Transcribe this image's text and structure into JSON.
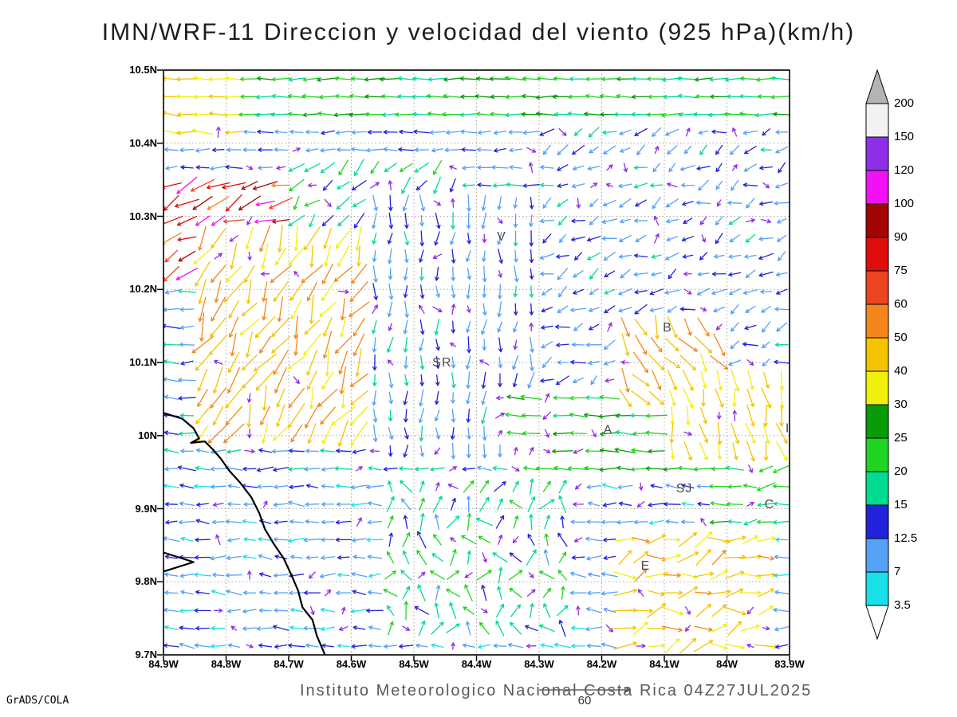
{
  "title": "IMN/WRF-11 Direccion y velocidad del viento (925 hPa)(km/h)",
  "credit": "GrADS/COLA",
  "footer_text": "Instituto Meteorologico Nacional Costa Rica 04Z27JUL2025",
  "ref_vector": {
    "label": "60",
    "value": 60
  },
  "chart_data": {
    "type": "vector-field-map",
    "x_tick_labels": [
      "84.9W",
      "84.8W",
      "84.7W",
      "84.6W",
      "84.5W",
      "84.4W",
      "84.3W",
      "84.2W",
      "84.1W",
      "84W",
      "83.9W"
    ],
    "y_tick_labels": [
      "10.5N",
      "10.4N",
      "10.3N",
      "10.2N",
      "10.1N",
      "10N",
      "9.9N",
      "9.8N",
      "9.7N"
    ],
    "lon_range": [
      -84.9,
      -83.9
    ],
    "lat_range": [
      9.7,
      10.5
    ],
    "grid_dotted": true,
    "colorbar": {
      "labels_top_to_bottom": [
        "200",
        "150",
        "120",
        "100",
        "90",
        "75",
        "60",
        "50",
        "40",
        "30",
        "25",
        "20",
        "15",
        "12.5",
        "7",
        "3.5"
      ],
      "levels": [
        3.5,
        7,
        12.5,
        15,
        20,
        25,
        30,
        40,
        50,
        60,
        75,
        90,
        100,
        120,
        150,
        200
      ],
      "colors_bottom_to_top": [
        "#17e0e8",
        "#55a1f5",
        "#2222dd",
        "#00db94",
        "#22d422",
        "#089c08",
        "#f0f00d",
        "#f5c400",
        "#f5861d",
        "#ed4420",
        "#e00d0d",
        "#a30505",
        "#f211f2",
        "#8f2ee8",
        "#f2f2f2"
      ],
      "under_arrow_color": "#ffffff",
      "over_arrow_color": "#b4b4b4"
    },
    "stations": [
      {
        "label": "V",
        "lon": -84.36,
        "lat": 10.272
      },
      {
        "label": "B",
        "lon": -84.095,
        "lat": 10.148
      },
      {
        "label": "SR",
        "lon": -84.455,
        "lat": 10.1
      },
      {
        "label": "A",
        "lon": -84.19,
        "lat": 10.008
      },
      {
        "label": "SJ",
        "lon": -84.068,
        "lat": 9.928
      },
      {
        "label": "C",
        "lon": -83.932,
        "lat": 9.906
      },
      {
        "label": "E",
        "lon": -84.13,
        "lat": 9.822
      },
      {
        "label": "I",
        "lon": -83.903,
        "lat": 10.01
      }
    ],
    "coastline": [
      [
        -84.9,
        10.031
      ],
      [
        -84.87,
        10.023
      ],
      [
        -84.852,
        10.01
      ],
      [
        -84.843,
        9.996
      ],
      [
        -84.856,
        9.99
      ],
      [
        -84.834,
        9.992
      ],
      [
        -84.82,
        9.98
      ],
      [
        -84.808,
        9.968
      ],
      [
        -84.795,
        9.952
      ],
      [
        -84.778,
        9.936
      ],
      [
        -84.76,
        9.916
      ],
      [
        -84.747,
        9.894
      ],
      [
        -84.738,
        9.872
      ],
      [
        -84.724,
        9.852
      ],
      [
        -84.708,
        9.832
      ],
      [
        -84.696,
        9.81
      ],
      [
        -84.685,
        9.788
      ],
      [
        -84.678,
        9.765
      ],
      [
        -84.662,
        9.748
      ],
      [
        -84.655,
        9.726
      ],
      [
        -84.642,
        9.7
      ]
    ],
    "coast_spit": [
      [
        -84.9,
        9.84
      ],
      [
        -84.852,
        9.827
      ],
      [
        -84.9,
        9.814
      ]
    ],
    "vector_field": {
      "nx": 40,
      "ny": 33,
      "seed": 20250727,
      "arrow_stroke_width": 1.3,
      "regions": [
        {
          "name": "base-trades",
          "lon": [
            -84.9,
            -83.9
          ],
          "lat": [
            9.7,
            10.5
          ],
          "dir": 180,
          "spread": 14,
          "speed": [
            9,
            19
          ],
          "len": [
            15,
            23
          ]
        },
        {
          "name": "north-band",
          "lon": [
            -84.9,
            -83.9
          ],
          "lat": [
            10.43,
            10.5
          ],
          "dir": 180,
          "spread": 7,
          "speed": [
            17,
            28
          ],
          "len": [
            19,
            27
          ]
        },
        {
          "name": "north-band-2",
          "lon": [
            -84.9,
            -83.9
          ],
          "lat": [
            10.35,
            10.43
          ],
          "dir": 183,
          "spread": 10,
          "speed": [
            7,
            15
          ],
          "len": [
            14,
            21
          ]
        },
        {
          "name": "nw-yellow",
          "lon": [
            -84.9,
            -84.77
          ],
          "lat": [
            10.4,
            10.5
          ],
          "dir": 176,
          "spread": 10,
          "speed": [
            30,
            48
          ],
          "len": [
            21,
            28
          ]
        },
        {
          "name": "nw-center-swirl",
          "lon": [
            -84.72,
            -84.42
          ],
          "lat": [
            10.24,
            10.38
          ],
          "dir": 225,
          "spread": 25,
          "speed": [
            12,
            24
          ],
          "len": [
            16,
            24
          ]
        },
        {
          "name": "nw-strong",
          "lon": [
            -84.9,
            -84.7
          ],
          "lat": [
            10.2,
            10.36
          ],
          "dir": 203,
          "spread": 24,
          "speed": [
            52,
            112
          ],
          "len": [
            20,
            33
          ]
        },
        {
          "name": "west-jet",
          "lon": [
            -84.85,
            -84.5
          ],
          "lat": [
            10.0,
            10.28
          ],
          "dir": 242,
          "spread": 26,
          "speed": [
            36,
            58
          ],
          "len": [
            24,
            36
          ]
        },
        {
          "name": "central-south",
          "lon": [
            -84.58,
            -84.3
          ],
          "lat": [
            9.97,
            10.33
          ],
          "dir": 268,
          "spread": 18,
          "speed": [
            7,
            16
          ],
          "len": [
            13,
            21
          ]
        },
        {
          "name": "east-mid",
          "lon": [
            -84.3,
            -83.9
          ],
          "lat": [
            10.07,
            10.42
          ],
          "dir": 205,
          "spread": 32,
          "speed": [
            7,
            16
          ],
          "len": [
            12,
            19
          ]
        },
        {
          "name": "green-band-east",
          "lon": [
            -84.36,
            -83.9
          ],
          "lat": [
            9.95,
            10.06
          ],
          "dir": 178,
          "spread": 9,
          "speed": [
            19,
            29
          ],
          "len": [
            19,
            27
          ]
        },
        {
          "name": "b-streak",
          "lon": [
            -84.17,
            -84.01
          ],
          "lat": [
            10.04,
            10.17
          ],
          "dir": 300,
          "spread": 26,
          "speed": [
            38,
            55
          ],
          "len": [
            22,
            31
          ]
        },
        {
          "name": "se-yellow",
          "lon": [
            -84.09,
            -83.91
          ],
          "lat": [
            9.97,
            10.09
          ],
          "dir": 282,
          "spread": 18,
          "speed": [
            34,
            50
          ],
          "len": [
            20,
            29
          ]
        },
        {
          "name": "south-band",
          "lon": [
            -84.9,
            -83.9
          ],
          "lat": [
            9.7,
            9.95
          ],
          "dir": 178,
          "spread": 15,
          "speed": [
            5,
            15
          ],
          "len": [
            14,
            21
          ]
        },
        {
          "name": "c-green",
          "lon": [
            -84.02,
            -83.9
          ],
          "lat": [
            9.86,
            9.96
          ],
          "dir": 185,
          "spread": 20,
          "speed": [
            17,
            26
          ],
          "len": [
            16,
            24
          ]
        },
        {
          "name": "south-center-mix",
          "lon": [
            -84.55,
            -84.24
          ],
          "lat": [
            9.73,
            9.94
          ],
          "dir": 95,
          "spread": 65,
          "speed": [
            11,
            24
          ],
          "len": [
            14,
            23
          ]
        },
        {
          "name": "se-strong",
          "lon": [
            -84.17,
            -83.93
          ],
          "lat": [
            9.71,
            9.86
          ],
          "dir": 15,
          "spread": 35,
          "speed": [
            34,
            55
          ],
          "len": [
            20,
            30
          ]
        },
        {
          "name": "purple-specks",
          "lon": [
            -84.82,
            -83.92
          ],
          "lat": [
            9.7,
            10.42
          ],
          "dir": 0,
          "spread": 180,
          "speed": [
            121,
            148
          ],
          "len": [
            8,
            13
          ],
          "prob": 0.12
        }
      ]
    }
  }
}
